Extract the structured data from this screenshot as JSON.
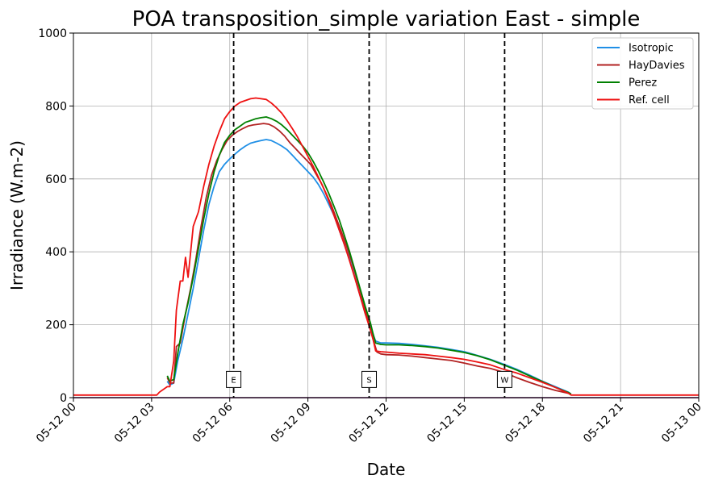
{
  "chart_data": {
    "type": "line",
    "title": "POA transposition_simple variation East - simple",
    "xlabel": "Date",
    "ylabel": "Irradiance (W.m-2)",
    "xlim": [
      0,
      24
    ],
    "ylim": [
      0,
      1000
    ],
    "x_unit": "hours",
    "x_ticks": [
      0,
      3,
      6,
      9,
      12,
      15,
      18,
      21,
      24
    ],
    "x_tick_labels": [
      "05-12 00",
      "05-12 03",
      "05-12 06",
      "05-12 09",
      "05-12 12",
      "05-12 15",
      "05-12 18",
      "05-12 21",
      "05-13 00"
    ],
    "y_ticks": [
      0,
      200,
      400,
      600,
      800,
      1000
    ],
    "y_tick_labels": [
      "0",
      "200",
      "400",
      "600",
      "800",
      "1000"
    ],
    "grid": true,
    "legend_position": "top-right",
    "series": [
      {
        "name": "Isotropic",
        "color": "#1f8fe6",
        "points": [
          [
            3.6,
            45
          ],
          [
            3.7,
            35
          ],
          [
            3.85,
            40
          ],
          [
            4.0,
            100
          ],
          [
            4.2,
            160
          ],
          [
            4.4,
            230
          ],
          [
            4.6,
            300
          ],
          [
            4.8,
            380
          ],
          [
            5.0,
            460
          ],
          [
            5.2,
            530
          ],
          [
            5.4,
            580
          ],
          [
            5.6,
            620
          ],
          [
            5.8,
            640
          ],
          [
            6.0,
            655
          ],
          [
            6.2,
            668
          ],
          [
            6.4,
            680
          ],
          [
            6.6,
            690
          ],
          [
            6.8,
            698
          ],
          [
            7.0,
            702
          ],
          [
            7.2,
            705
          ],
          [
            7.4,
            708
          ],
          [
            7.6,
            705
          ],
          [
            7.8,
            698
          ],
          [
            8.0,
            690
          ],
          [
            8.2,
            680
          ],
          [
            8.4,
            665
          ],
          [
            8.6,
            650
          ],
          [
            8.8,
            635
          ],
          [
            9.0,
            620
          ],
          [
            9.2,
            605
          ],
          [
            9.4,
            585
          ],
          [
            9.6,
            560
          ],
          [
            9.8,
            530
          ],
          [
            10.0,
            500
          ],
          [
            10.2,
            460
          ],
          [
            10.4,
            420
          ],
          [
            10.6,
            380
          ],
          [
            10.8,
            330
          ],
          [
            11.0,
            280
          ],
          [
            11.2,
            230
          ],
          [
            11.4,
            190
          ],
          [
            11.6,
            155
          ],
          [
            11.8,
            150
          ],
          [
            12.0,
            150
          ],
          [
            12.5,
            149
          ],
          [
            13.0,
            146
          ],
          [
            13.5,
            142
          ],
          [
            14.0,
            138
          ],
          [
            14.5,
            132
          ],
          [
            15.0,
            126
          ],
          [
            15.5,
            116
          ],
          [
            16.0,
            105
          ],
          [
            16.5,
            92
          ],
          [
            17.0,
            78
          ],
          [
            17.5,
            62
          ],
          [
            18.0,
            45
          ],
          [
            18.5,
            30
          ],
          [
            19.0,
            15
          ],
          [
            19.1,
            10
          ]
        ]
      },
      {
        "name": "HayDavies",
        "color": "#b22222",
        "points": [
          [
            3.6,
            55
          ],
          [
            3.7,
            40
          ],
          [
            3.85,
            40
          ],
          [
            3.95,
            140
          ],
          [
            4.1,
            150
          ],
          [
            4.3,
            230
          ],
          [
            4.5,
            300
          ],
          [
            4.7,
            380
          ],
          [
            4.9,
            470
          ],
          [
            5.1,
            550
          ],
          [
            5.3,
            610
          ],
          [
            5.5,
            650
          ],
          [
            5.7,
            680
          ],
          [
            5.9,
            705
          ],
          [
            6.1,
            720
          ],
          [
            6.3,
            730
          ],
          [
            6.5,
            738
          ],
          [
            6.7,
            745
          ],
          [
            6.9,
            748
          ],
          [
            7.1,
            750
          ],
          [
            7.3,
            752
          ],
          [
            7.5,
            750
          ],
          [
            7.7,
            743
          ],
          [
            7.9,
            732
          ],
          [
            8.1,
            718
          ],
          [
            8.3,
            700
          ],
          [
            8.5,
            685
          ],
          [
            8.7,
            670
          ],
          [
            8.9,
            655
          ],
          [
            9.1,
            640
          ],
          [
            9.3,
            615
          ],
          [
            9.5,
            590
          ],
          [
            9.7,
            560
          ],
          [
            9.9,
            528
          ],
          [
            10.1,
            490
          ],
          [
            10.3,
            452
          ],
          [
            10.5,
            412
          ],
          [
            10.7,
            370
          ],
          [
            10.9,
            320
          ],
          [
            11.1,
            270
          ],
          [
            11.3,
            215
          ],
          [
            11.5,
            160
          ],
          [
            11.65,
            125
          ],
          [
            11.8,
            120
          ],
          [
            12.0,
            118
          ],
          [
            12.5,
            117
          ],
          [
            13.0,
            114
          ],
          [
            13.5,
            110
          ],
          [
            14.0,
            106
          ],
          [
            14.5,
            102
          ],
          [
            15.0,
            95
          ],
          [
            15.5,
            87
          ],
          [
            16.0,
            80
          ],
          [
            16.5,
            70
          ],
          [
            17.0,
            55
          ],
          [
            17.5,
            42
          ],
          [
            18.0,
            30
          ],
          [
            18.5,
            20
          ],
          [
            19.0,
            12
          ],
          [
            19.1,
            9
          ]
        ]
      },
      {
        "name": "Perez",
        "color": "#008000",
        "points": [
          [
            3.6,
            60
          ],
          [
            3.7,
            45
          ],
          [
            3.85,
            50
          ],
          [
            4.0,
            120
          ],
          [
            4.2,
            200
          ],
          [
            4.4,
            260
          ],
          [
            4.6,
            330
          ],
          [
            4.8,
            410
          ],
          [
            5.0,
            490
          ],
          [
            5.2,
            560
          ],
          [
            5.4,
            620
          ],
          [
            5.6,
            665
          ],
          [
            5.8,
            700
          ],
          [
            6.0,
            720
          ],
          [
            6.2,
            735
          ],
          [
            6.4,
            745
          ],
          [
            6.6,
            755
          ],
          [
            6.8,
            760
          ],
          [
            7.0,
            765
          ],
          [
            7.2,
            768
          ],
          [
            7.4,
            770
          ],
          [
            7.6,
            765
          ],
          [
            7.8,
            758
          ],
          [
            8.0,
            748
          ],
          [
            8.2,
            735
          ],
          [
            8.4,
            720
          ],
          [
            8.6,
            705
          ],
          [
            8.8,
            690
          ],
          [
            9.0,
            672
          ],
          [
            9.2,
            648
          ],
          [
            9.4,
            622
          ],
          [
            9.6,
            592
          ],
          [
            9.8,
            560
          ],
          [
            10.0,
            525
          ],
          [
            10.2,
            488
          ],
          [
            10.4,
            445
          ],
          [
            10.6,
            400
          ],
          [
            10.8,
            350
          ],
          [
            11.0,
            300
          ],
          [
            11.2,
            250
          ],
          [
            11.4,
            205
          ],
          [
            11.5,
            175
          ],
          [
            11.6,
            150
          ],
          [
            11.8,
            146
          ],
          [
            12.0,
            145
          ],
          [
            12.5,
            145
          ],
          [
            13.0,
            143
          ],
          [
            13.5,
            140
          ],
          [
            14.0,
            136
          ],
          [
            14.5,
            130
          ],
          [
            15.0,
            124
          ],
          [
            15.5,
            115
          ],
          [
            16.0,
            104
          ],
          [
            16.5,
            90
          ],
          [
            17.0,
            76
          ],
          [
            17.5,
            60
          ],
          [
            18.0,
            44
          ],
          [
            18.5,
            28
          ],
          [
            19.0,
            14
          ],
          [
            19.1,
            10
          ]
        ]
      },
      {
        "name": "Ref. cell",
        "color": "#ee1111",
        "points": [
          [
            0,
            7
          ],
          [
            3.2,
            7
          ],
          [
            3.3,
            15
          ],
          [
            3.6,
            30
          ],
          [
            3.7,
            30
          ],
          [
            3.85,
            100
          ],
          [
            3.95,
            240
          ],
          [
            4.1,
            320
          ],
          [
            4.2,
            320
          ],
          [
            4.3,
            385
          ],
          [
            4.4,
            330
          ],
          [
            4.5,
            400
          ],
          [
            4.6,
            470
          ],
          [
            4.8,
            510
          ],
          [
            5.0,
            580
          ],
          [
            5.2,
            640
          ],
          [
            5.4,
            690
          ],
          [
            5.6,
            730
          ],
          [
            5.8,
            765
          ],
          [
            6.0,
            785
          ],
          [
            6.2,
            800
          ],
          [
            6.4,
            810
          ],
          [
            6.6,
            815
          ],
          [
            6.8,
            820
          ],
          [
            7.0,
            822
          ],
          [
            7.2,
            820
          ],
          [
            7.4,
            818
          ],
          [
            7.6,
            808
          ],
          [
            7.8,
            795
          ],
          [
            8.0,
            780
          ],
          [
            8.2,
            760
          ],
          [
            8.4,
            738
          ],
          [
            8.6,
            715
          ],
          [
            8.8,
            688
          ],
          [
            9.0,
            662
          ],
          [
            9.2,
            635
          ],
          [
            9.4,
            605
          ],
          [
            9.6,
            575
          ],
          [
            9.8,
            540
          ],
          [
            10.0,
            500
          ],
          [
            10.2,
            460
          ],
          [
            10.4,
            420
          ],
          [
            10.6,
            375
          ],
          [
            10.8,
            328
          ],
          [
            11.0,
            280
          ],
          [
            11.2,
            230
          ],
          [
            11.4,
            185
          ],
          [
            11.5,
            160
          ],
          [
            11.6,
            128
          ],
          [
            11.8,
            126
          ],
          [
            12.0,
            125
          ],
          [
            12.5,
            122
          ],
          [
            13.0,
            120
          ],
          [
            13.5,
            118
          ],
          [
            14.0,
            114
          ],
          [
            14.5,
            110
          ],
          [
            15.0,
            105
          ],
          [
            15.5,
            98
          ],
          [
            16.0,
            90
          ],
          [
            16.5,
            78
          ],
          [
            17.0,
            68
          ],
          [
            17.5,
            55
          ],
          [
            18.0,
            42
          ],
          [
            18.5,
            28
          ],
          [
            19.0,
            12
          ],
          [
            19.1,
            7
          ],
          [
            24,
            7
          ]
        ]
      }
    ],
    "vlines": [
      {
        "x": 6.15,
        "label": "E",
        "marker_y": 50
      },
      {
        "x": 11.35,
        "label": "S",
        "marker_y": 50
      },
      {
        "x": 16.55,
        "label": "W",
        "marker_y": 50
      }
    ],
    "baseline": {
      "color": "#5a005a",
      "y": 0
    }
  }
}
